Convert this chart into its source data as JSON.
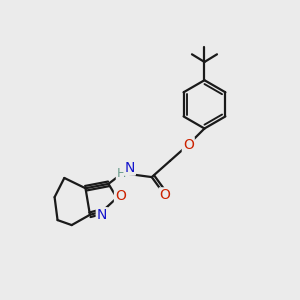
{
  "bg_color": "#ebebeb",
  "bond_color": "#1a1a1a",
  "N_color": "#1414cc",
  "O_color": "#cc2200",
  "H_color": "#6a9a8a",
  "bond_width": 1.6,
  "font_size_atom": 10,
  "figsize": [
    3.0,
    3.0
  ],
  "dpi": 100,
  "xlim": [
    0.0,
    10.0
  ],
  "ylim": [
    0.0,
    10.0
  ]
}
